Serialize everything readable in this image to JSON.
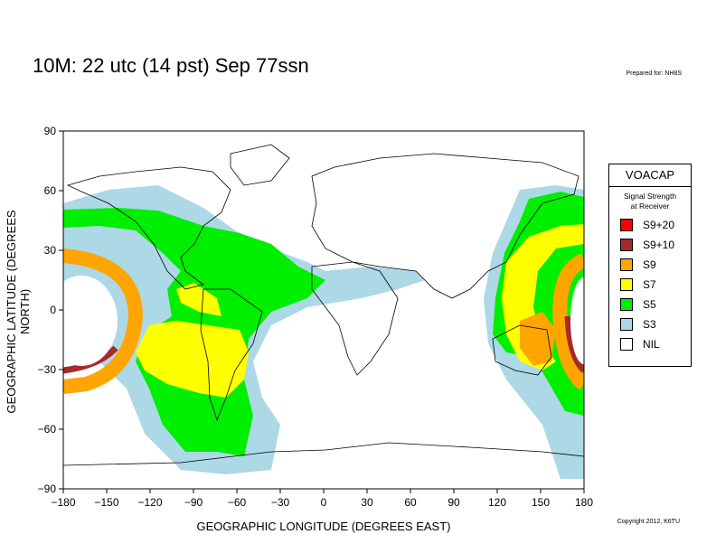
{
  "header": {
    "title": "10M:  22 utc (14 pst) Sep 77ssn",
    "prepared": "Prepared for: NH8S",
    "copyright": "Copyright 2012, K6TU"
  },
  "axes": {
    "xlabel": "GEOGRAPHIC LONGITUDE (DEGREES EAST)",
    "ylabel": "GEOGRAPHIC LATITUDE (DEGREES NORTH)",
    "xlim": [
      -180,
      180
    ],
    "ylim": [
      -90,
      90
    ],
    "xticks": [
      "−180",
      "−150",
      "−120",
      "−90",
      "−60",
      "−30",
      "0",
      "30",
      "60",
      "90",
      "120",
      "150",
      "180"
    ],
    "yticks": [
      "90",
      "60",
      "30",
      "0",
      "−30",
      "−60",
      "−90"
    ]
  },
  "legend": {
    "title": "VOACAP",
    "subtitle_line1": "Signal Strength",
    "subtitle_line2": "at Receiver",
    "items": [
      {
        "label": "S9+20",
        "color": "#ff0000"
      },
      {
        "label": "S9+10",
        "color": "#a52a2a"
      },
      {
        "label": "S9",
        "color": "#ffa500"
      },
      {
        "label": "S7",
        "color": "#ffff00"
      },
      {
        "label": "S5",
        "color": "#00ee00"
      },
      {
        "label": "S3",
        "color": "#add8e6"
      },
      {
        "label": "NIL",
        "color": "#ffffff"
      }
    ]
  },
  "colors": {
    "s9plus10": "#a52a2a",
    "s9": "#ffa500",
    "s7": "#ffff00",
    "s5": "#00ee00",
    "s3": "#add8e6"
  }
}
